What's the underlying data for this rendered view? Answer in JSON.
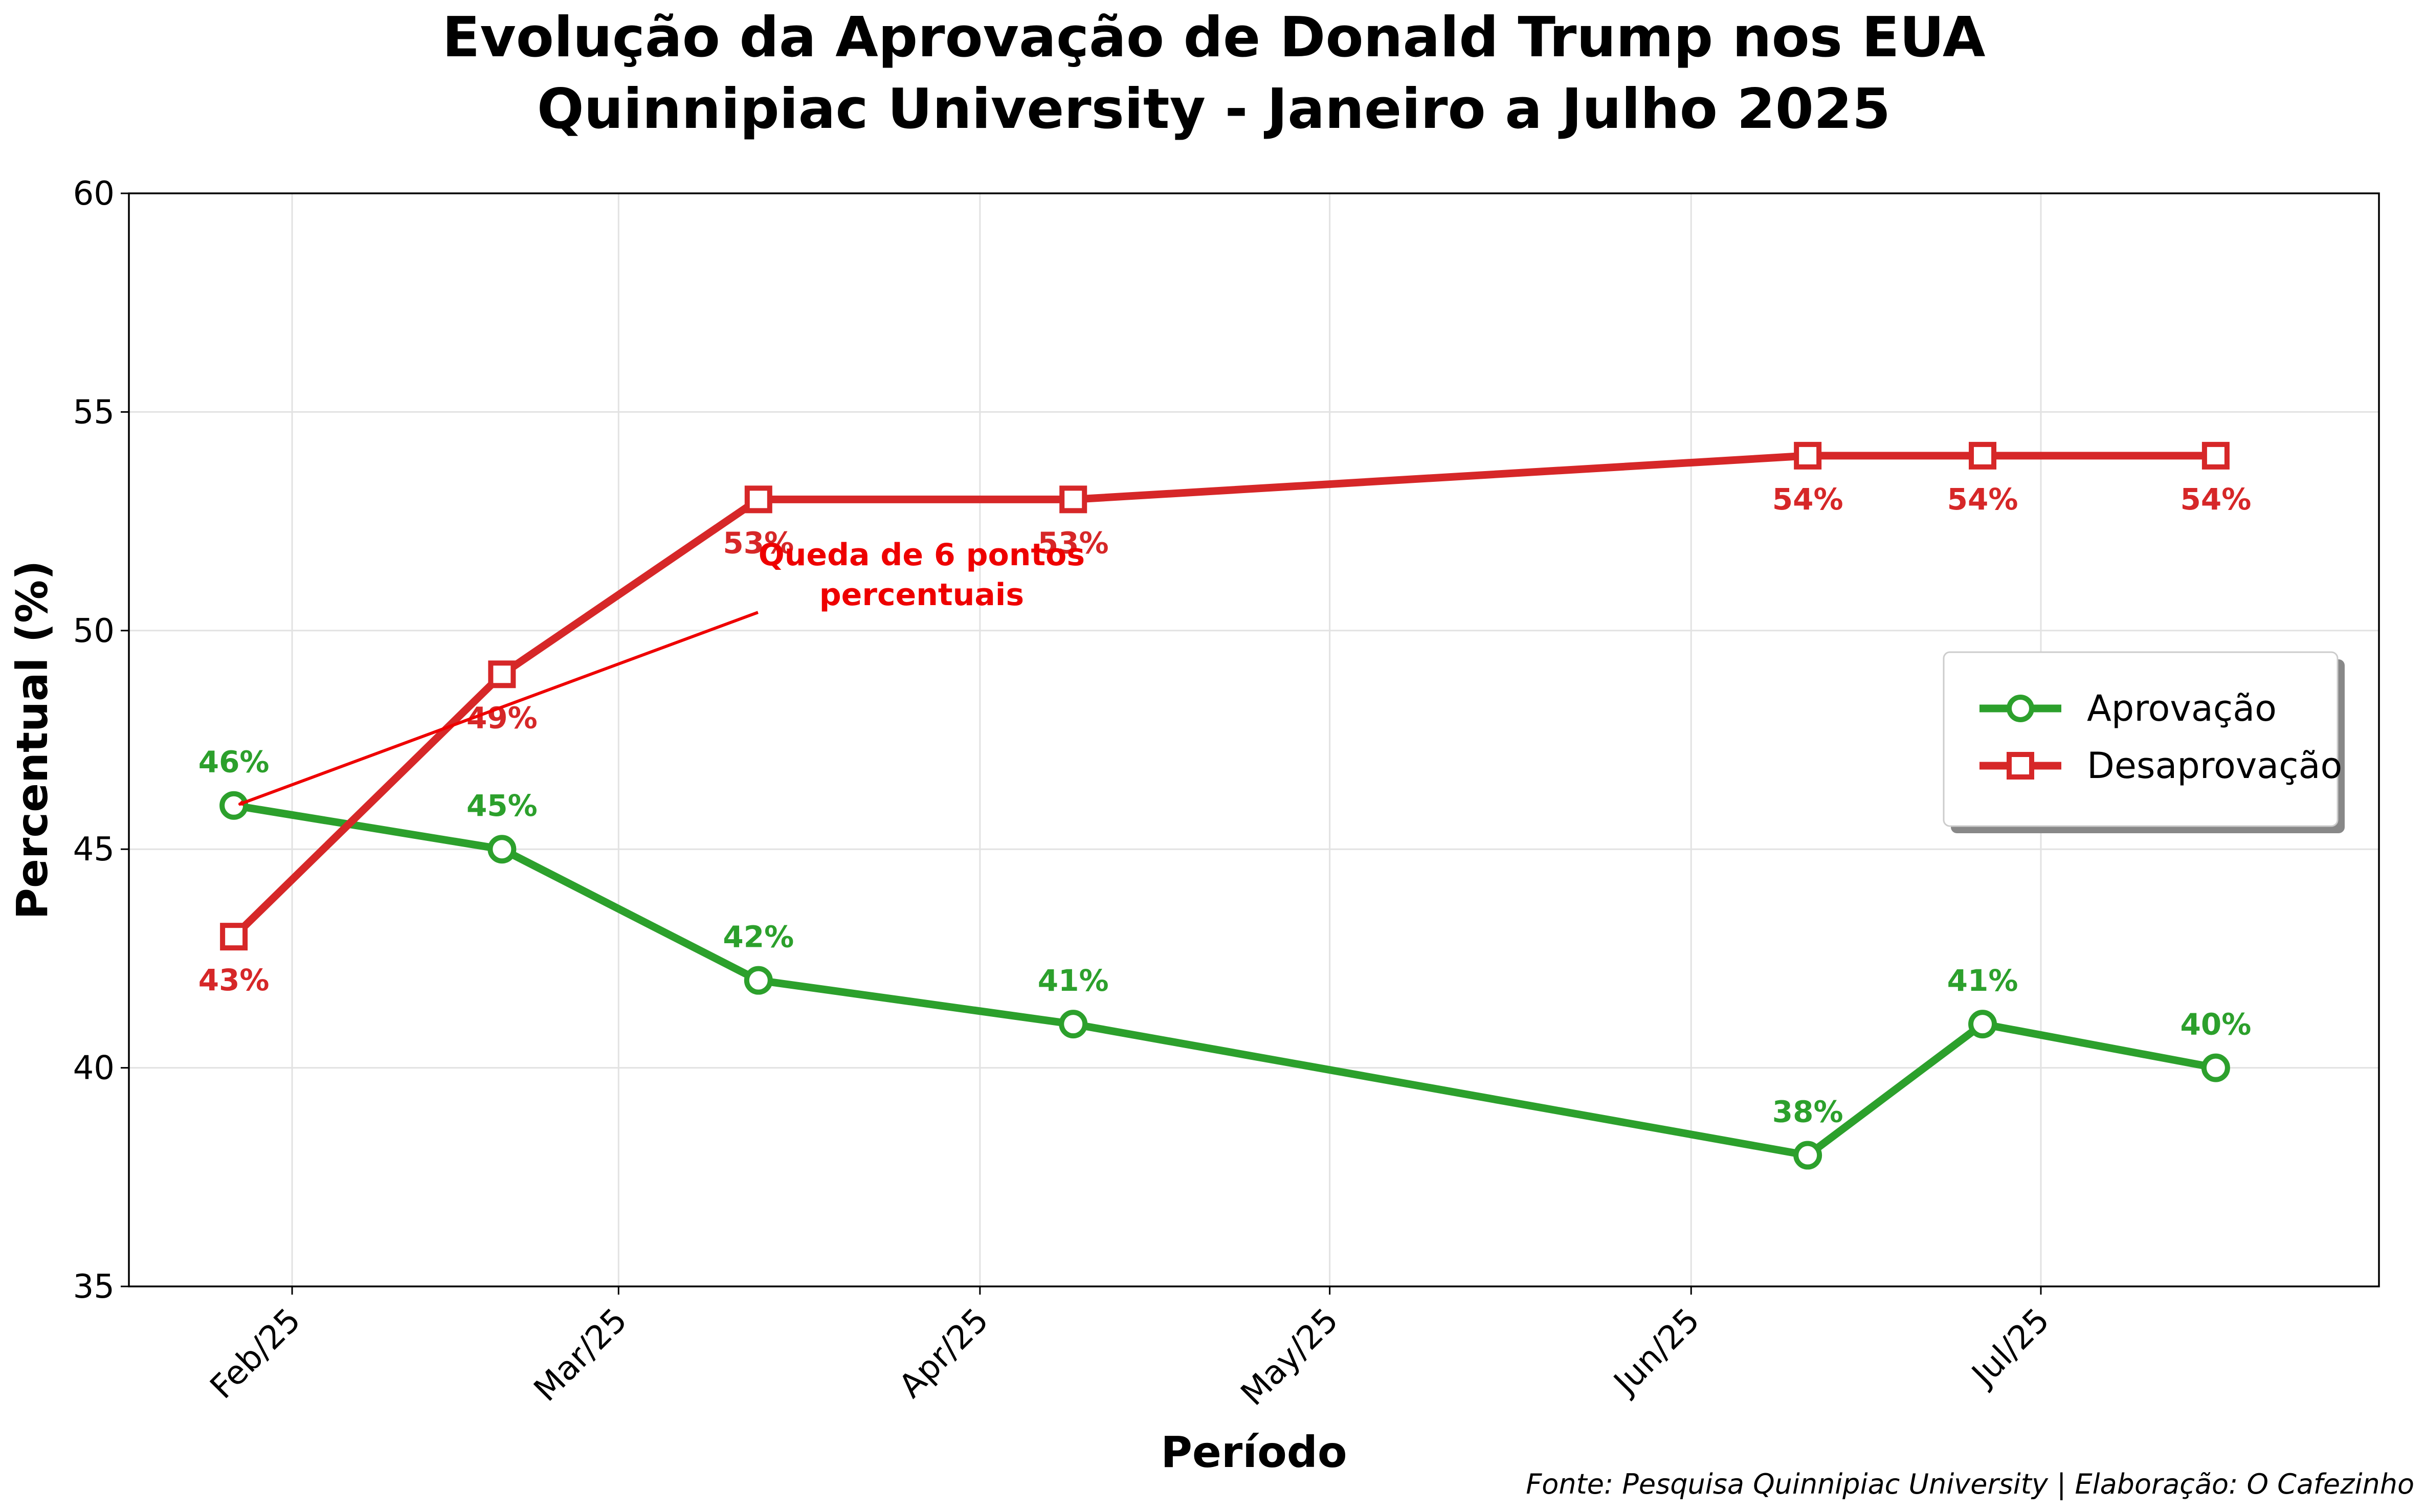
{
  "chart_data": {
    "type": "line",
    "title": "Evolução da Aprovação de Donald Trump nos EUA",
    "subtitle": "Quinnipiac University - Janeiro a Julho 2025",
    "xlabel": "Período",
    "ylabel": "Percentual (%)",
    "ylim": [
      35,
      60
    ],
    "yticks": [
      35,
      40,
      45,
      50,
      55,
      60
    ],
    "xlim": [
      "2025-01-18",
      "2025-07-30"
    ],
    "xticks": [
      {
        "date": "2025-02-01",
        "label": "Feb/25"
      },
      {
        "date": "2025-03-01",
        "label": "Mar/25"
      },
      {
        "date": "2025-04-01",
        "label": "Apr/25"
      },
      {
        "date": "2025-05-01",
        "label": "May/25"
      },
      {
        "date": "2025-06-01",
        "label": "Jun/25"
      },
      {
        "date": "2025-07-01",
        "label": "Jul/25"
      }
    ],
    "grid": true,
    "legend_position": "right",
    "series": [
      {
        "name": "Aprovação",
        "color": "#2ca02c",
        "marker": "circle",
        "x": [
          "2025-01-27",
          "2025-02-19",
          "2025-03-13",
          "2025-04-09",
          "2025-06-11",
          "2025-06-26",
          "2025-07-16"
        ],
        "values": [
          46,
          45,
          42,
          41,
          38,
          41,
          40
        ],
        "labels": [
          "46%",
          "45%",
          "42%",
          "41%",
          "38%",
          "41%",
          "40%"
        ],
        "label_position": "above"
      },
      {
        "name": "Desaprovação",
        "color": "#d62728",
        "marker": "square",
        "x": [
          "2025-01-27",
          "2025-02-19",
          "2025-03-13",
          "2025-04-09",
          "2025-06-11",
          "2025-06-26",
          "2025-07-16"
        ],
        "values": [
          43,
          49,
          53,
          53,
          54,
          54,
          54
        ],
        "labels": [
          "43%",
          "49%",
          "53%",
          "53%",
          "54%",
          "54%",
          "54%"
        ],
        "label_position": "below"
      }
    ],
    "annotations": [
      {
        "text_lines": [
          "Queda de 6 pontos",
          "percentuais"
        ],
        "color": "#ee0000",
        "target_date": "2025-01-27",
        "target_value": 46,
        "text_date": "2025-03-27",
        "text_value": 50.3
      }
    ],
    "source": "Fonte: Pesquisa Quinnipiac University | Elaboração: O Cafezinho"
  }
}
